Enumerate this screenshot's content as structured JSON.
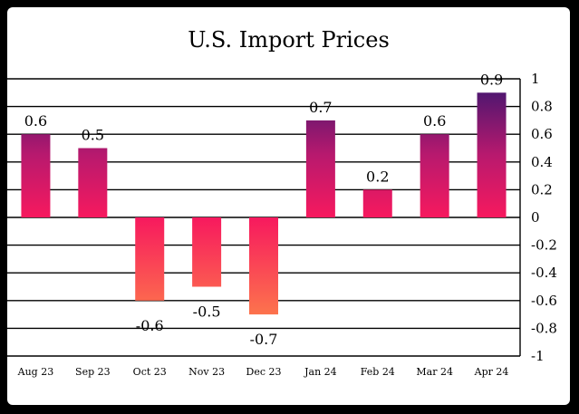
{
  "chart_data": {
    "type": "bar",
    "title": "U.S. Import Prices",
    "categories": [
      "Aug 23",
      "Sep 23",
      "Oct 23",
      "Nov 23",
      "Dec 23",
      "Jan 24",
      "Feb 24",
      "Mar 24",
      "Apr 24"
    ],
    "values": [
      0.6,
      0.5,
      -0.6,
      -0.5,
      -0.7,
      0.7,
      0.2,
      0.6,
      0.9
    ],
    "data_labels": [
      "0.6",
      "0.5",
      "-0.6",
      "-0.5",
      "-0.7",
      "0.7",
      "0.2",
      "0.6",
      "0.9"
    ],
    "y_ticks": [
      1,
      0.8,
      0.6,
      0.4,
      0.2,
      0,
      -0.2,
      -0.4,
      -0.6,
      -0.8,
      -1
    ],
    "y_tick_labels": [
      "1",
      "0.8",
      "0.6",
      "0.4",
      "0.2",
      "0",
      "-0.2",
      "-0.4",
      "-0.6",
      "-0.8",
      "-1"
    ],
    "ylim": [
      -1,
      1
    ],
    "xlabel": "",
    "ylabel": "",
    "grid": true,
    "y_axis_side": "right",
    "colors": {
      "positive_top": "#3a1670",
      "positive_mid": "#b8196e",
      "positive_bottom": "#f7195e",
      "negative_top": "#f7195e",
      "negative_bottom": "#ff9a45",
      "frame_background": "#000000",
      "plot_background": "#ffffff"
    }
  }
}
